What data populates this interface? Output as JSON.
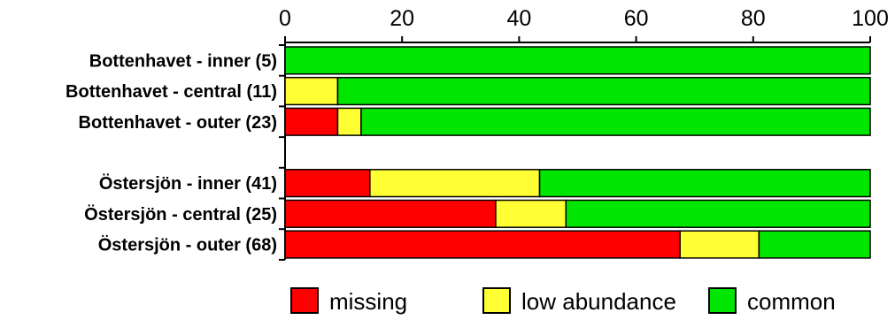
{
  "chart_data": {
    "type": "bar",
    "orientation": "horizontal",
    "stacked": true,
    "title": "",
    "xlabel": "",
    "ylabel": "",
    "xlim": [
      0,
      100
    ],
    "x_ticks": [
      0,
      20,
      40,
      60,
      80,
      100
    ],
    "x_axis_position": "top",
    "grid": false,
    "legend_position": "bottom",
    "categories": [
      "Bottenhavet - inner (5)",
      "Bottenhavet - central (11)",
      "Bottenhavet - outer (23)",
      "",
      "Östersjön - inner (41)",
      "Östersjön - central (25)",
      "Östersjön - outer (68)"
    ],
    "series": [
      {
        "name": "missing",
        "color": "#ff0000",
        "values": [
          0,
          0,
          9,
          null,
          14.5,
          36,
          67.5
        ]
      },
      {
        "name": "low abundance",
        "color": "#ffff33",
        "values": [
          0,
          9,
          4,
          null,
          29,
          12,
          13.5
        ]
      },
      {
        "name": "common",
        "color": "#00e600",
        "values": [
          100,
          91,
          87,
          null,
          56.5,
          52,
          19
        ]
      }
    ]
  }
}
